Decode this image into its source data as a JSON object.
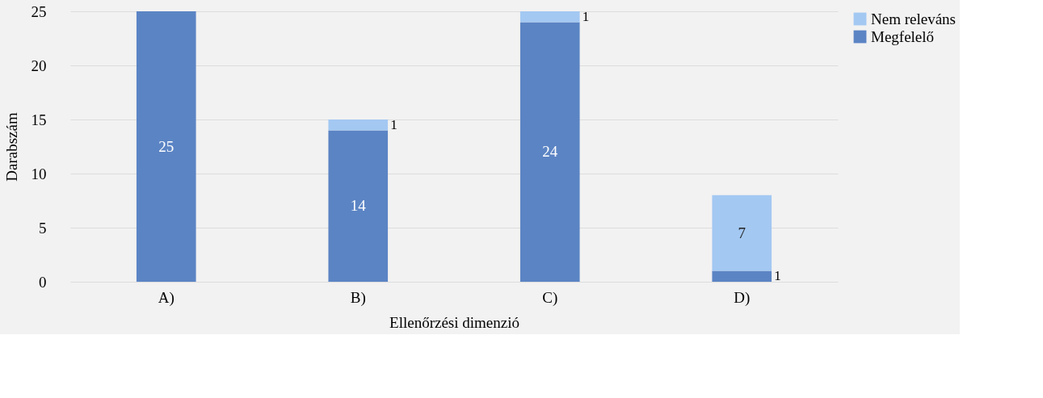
{
  "chart_data": {
    "type": "bar",
    "stacked": true,
    "xlabel": "Ellenőrzési dimenzió",
    "ylabel": "Darabszám",
    "categories": [
      "A)",
      "B)",
      "C)",
      "D)"
    ],
    "series": [
      {
        "name": "Megfelelő",
        "color": "#5b84c4",
        "values": [
          25,
          14,
          24,
          1
        ]
      },
      {
        "name": "Nem releváns",
        "color": "#a3c8f2",
        "values": [
          null,
          1,
          1,
          7
        ]
      }
    ],
    "ylim": [
      0,
      25
    ],
    "yticks": [
      0,
      5,
      10,
      15,
      20,
      25
    ],
    "grid": "y",
    "legend": "right",
    "data_labels": true
  }
}
